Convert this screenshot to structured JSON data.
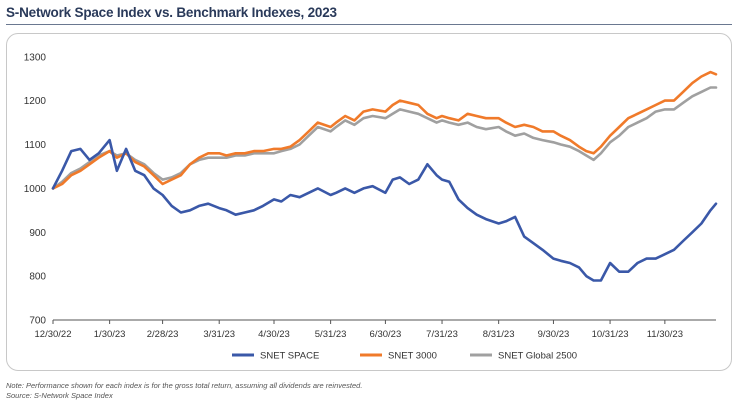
{
  "title": "S-Network Space Index vs. Benchmark Indexes, 2023",
  "note": "Note: Performance shown for each index is for the gross total return, assuming all dividends are reinvested.",
  "source": "Source: S-Network Space Index",
  "chart_data": {
    "type": "line",
    "title": "S-Network Space Index vs. Benchmark Indexes, 2023",
    "xlabel": "",
    "ylabel": "",
    "x_tick_labels": [
      "12/30/22",
      "1/30/23",
      "2/28/23",
      "3/31/23",
      "4/30/23",
      "5/31/23",
      "6/30/23",
      "7/31/23",
      "8/31/23",
      "9/30/23",
      "10/31/23",
      "11/30/23"
    ],
    "x_tick_values": [
      0,
      31,
      60,
      91,
      121,
      152,
      182,
      213,
      244,
      274,
      305,
      335
    ],
    "xlim": [
      0,
      363
    ],
    "ylim": [
      700,
      1320
    ],
    "y_ticks": [
      700,
      800,
      900,
      1000,
      1100,
      1200,
      1300
    ],
    "grid": false,
    "legend_position": "bottom",
    "x": [
      0,
      5,
      10,
      15,
      20,
      25,
      31,
      35,
      40,
      45,
      50,
      55,
      60,
      65,
      70,
      75,
      80,
      85,
      91,
      95,
      100,
      105,
      110,
      115,
      121,
      125,
      130,
      135,
      140,
      145,
      152,
      155,
      160,
      165,
      170,
      175,
      182,
      186,
      190,
      195,
      200,
      205,
      210,
      213,
      217,
      222,
      227,
      232,
      237,
      244,
      248,
      253,
      258,
      263,
      268,
      274,
      278,
      283,
      288,
      292,
      296,
      300,
      305,
      310,
      315,
      320,
      325,
      330,
      335,
      340,
      345,
      350,
      355,
      360,
      363
    ],
    "series": [
      {
        "name": "SNET SPACE",
        "color": "#3a58a8",
        "values": [
          1000,
          1040,
          1085,
          1090,
          1065,
          1080,
          1110,
          1040,
          1090,
          1040,
          1030,
          1000,
          985,
          960,
          945,
          950,
          960,
          965,
          955,
          950,
          940,
          945,
          950,
          960,
          975,
          970,
          985,
          980,
          990,
          1000,
          985,
          990,
          1000,
          990,
          1000,
          1005,
          990,
          1020,
          1025,
          1010,
          1020,
          1055,
          1030,
          1020,
          1015,
          975,
          955,
          940,
          930,
          920,
          925,
          935,
          890,
          875,
          860,
          840,
          835,
          830,
          820,
          800,
          790,
          790,
          830,
          810,
          810,
          830,
          840,
          840,
          850,
          860,
          880,
          900,
          920,
          950,
          965
        ]
      },
      {
        "name": "SNET 3000",
        "color": "#f07a2a",
        "values": [
          1000,
          1010,
          1030,
          1040,
          1055,
          1070,
          1085,
          1070,
          1080,
          1060,
          1050,
          1030,
          1010,
          1020,
          1030,
          1055,
          1070,
          1080,
          1080,
          1075,
          1080,
          1080,
          1085,
          1085,
          1090,
          1090,
          1095,
          1110,
          1130,
          1150,
          1140,
          1150,
          1165,
          1155,
          1175,
          1180,
          1175,
          1190,
          1200,
          1195,
          1190,
          1170,
          1160,
          1165,
          1160,
          1155,
          1170,
          1165,
          1160,
          1160,
          1150,
          1140,
          1145,
          1140,
          1130,
          1130,
          1120,
          1110,
          1095,
          1085,
          1080,
          1095,
          1120,
          1140,
          1160,
          1170,
          1180,
          1190,
          1200,
          1200,
          1220,
          1240,
          1255,
          1265,
          1260
        ]
      },
      {
        "name": "SNET Global 2500",
        "color": "#a0a0a0",
        "values": [
          1000,
          1015,
          1035,
          1045,
          1060,
          1075,
          1085,
          1075,
          1080,
          1065,
          1055,
          1035,
          1020,
          1025,
          1035,
          1055,
          1065,
          1070,
          1070,
          1070,
          1075,
          1075,
          1080,
          1080,
          1080,
          1085,
          1090,
          1100,
          1120,
          1140,
          1130,
          1140,
          1155,
          1145,
          1160,
          1165,
          1160,
          1170,
          1180,
          1175,
          1170,
          1160,
          1150,
          1155,
          1150,
          1145,
          1150,
          1140,
          1135,
          1140,
          1130,
          1120,
          1125,
          1115,
          1110,
          1105,
          1100,
          1095,
          1085,
          1075,
          1065,
          1080,
          1105,
          1120,
          1140,
          1150,
          1160,
          1175,
          1180,
          1180,
          1195,
          1210,
          1220,
          1230,
          1230
        ]
      }
    ]
  }
}
